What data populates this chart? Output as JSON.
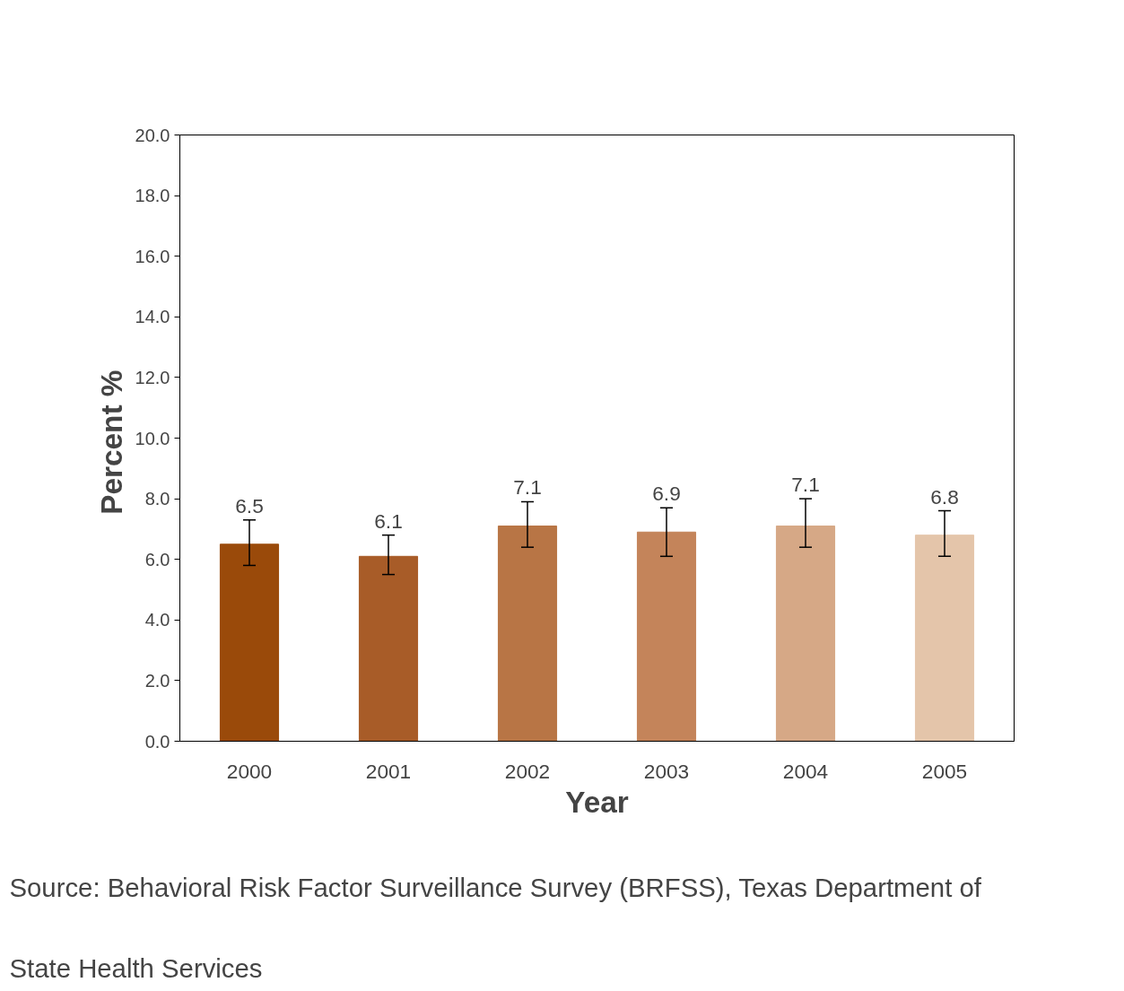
{
  "chart_data": {
    "type": "bar",
    "xlabel": "Year",
    "ylabel": "Percent  %",
    "categories": [
      "2000",
      "2001",
      "2002",
      "2003",
      "2004",
      "2005"
    ],
    "values": [
      6.5,
      6.1,
      7.1,
      6.9,
      7.1,
      6.8
    ],
    "colors": [
      "#9a4a0a",
      "#a85c28",
      "#b87545",
      "#c4845a",
      "#d6a886",
      "#e4c5aa"
    ],
    "errors": [
      [
        5.8,
        7.3
      ],
      [
        5.5,
        6.8
      ],
      [
        6.4,
        7.9
      ],
      [
        6.1,
        7.7
      ],
      [
        6.4,
        8.0
      ],
      [
        6.1,
        7.6
      ]
    ],
    "data_labels": true,
    "ylim": [
      0,
      20
    ],
    "yticks": [
      {
        "value": 0,
        "label": "0.0"
      },
      {
        "value": 2,
        "label": "2.0"
      },
      {
        "value": 4,
        "label": "4.0"
      },
      {
        "value": 6,
        "label": "6.0"
      },
      {
        "value": 8,
        "label": "8.0"
      },
      {
        "value": 10,
        "label": "10.0"
      },
      {
        "value": 12,
        "label": "12.0"
      },
      {
        "value": 14,
        "label": "14.0"
      },
      {
        "value": 16,
        "label": "16.0"
      },
      {
        "value": 18,
        "label": "18.0"
      },
      {
        "value": 20,
        "label": "20.0"
      }
    ],
    "grid": false,
    "annotations": [
      "Source: Behavioral Risk Factor Surveillance Survey (BRFSS), Texas Department of State Health Services"
    ]
  }
}
